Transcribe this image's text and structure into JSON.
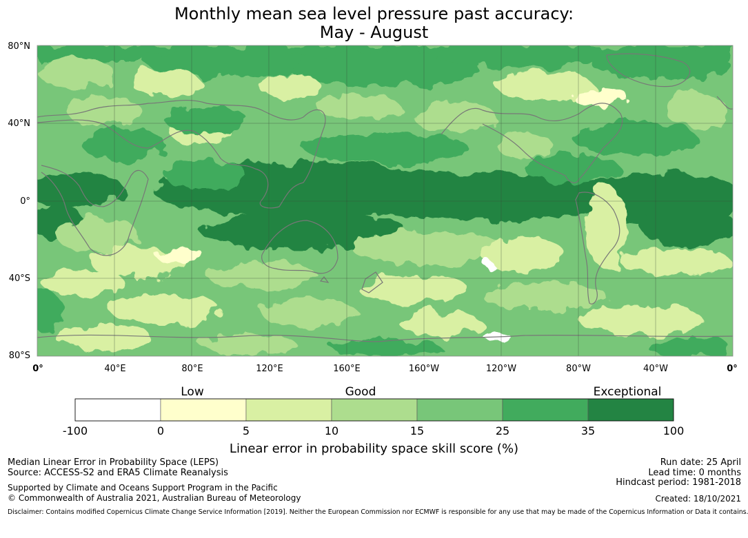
{
  "title": {
    "line1": "Monthly mean sea level pressure past accuracy:",
    "line2": "May - August"
  },
  "map": {
    "lat_labels": [
      "80°N",
      "40°N",
      "0°",
      "40°S",
      "80°S"
    ],
    "lon_labels": [
      "0°",
      "40°E",
      "80°E",
      "120°E",
      "160°E",
      "160°W",
      "120°W",
      "80°W",
      "40°W",
      "0°"
    ],
    "land_outline_color": "#777777",
    "grid_color": "#3a4a3a"
  },
  "colorbar": {
    "categories": [
      "Low",
      "Good",
      "Exceptional"
    ],
    "ticks": [
      "-100",
      "0",
      "5",
      "10",
      "15",
      "25",
      "35",
      "100"
    ],
    "colors": [
      "#ffffff",
      "#ffffcc",
      "#d9f0a3",
      "#addd8e",
      "#78c679",
      "#41ab5d",
      "#238443"
    ],
    "label": "Linear error in probability space skill score (%)"
  },
  "footer": {
    "left_line1": "Median Linear Error in Probability Space (LEPS)",
    "left_line2": "Source: ACCESS-S2 and ERA5 Climate Reanalysis",
    "left_line3": "Supported by Climate and Oceans Support Program in the Pacific",
    "left_line4": "© Commonwealth of Australia 2021, Australian Bureau of Meteorology",
    "right_line1": "Run date: 25 April",
    "right_line2": "Lead time: 0 months",
    "right_line3": "Hindcast period: 1981-2018",
    "right_line4": "Created: 18/10/2021",
    "disclaimer": "Disclaimer: Contains modified Copernicus Climate Change Service Information [2019]. Neither the European Commission nor ECMWF is responsible for any use that may be made of the Copernicus Information or Data it contains."
  }
}
